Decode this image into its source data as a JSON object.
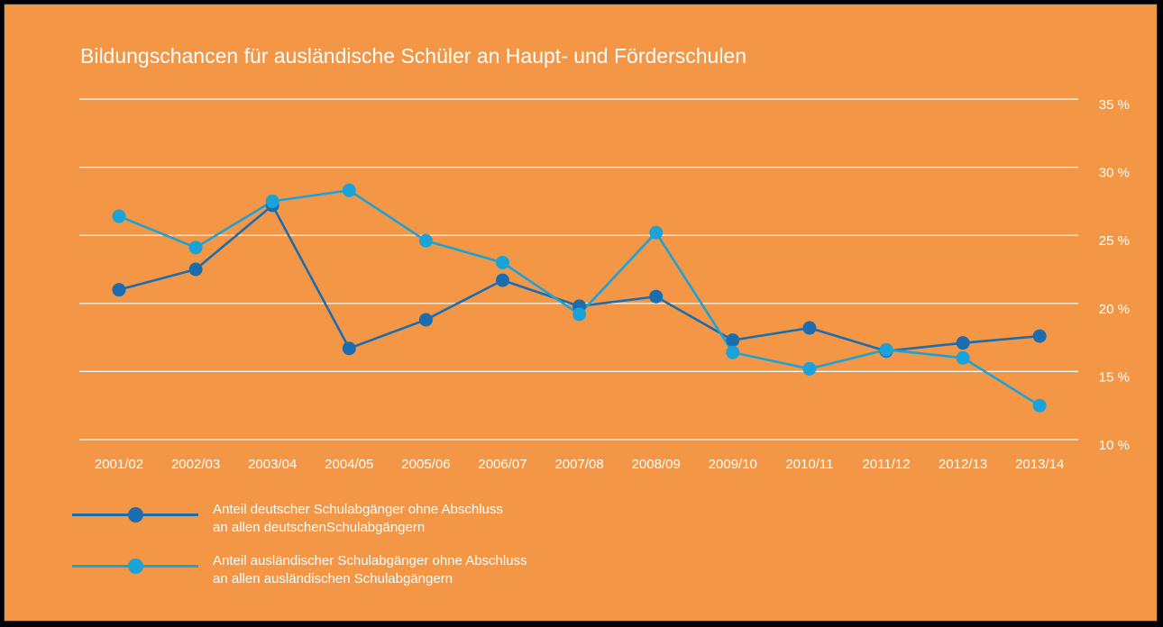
{
  "chart_data": {
    "type": "line",
    "title": "Bildungschancen für ausländische Schüler an Haupt- und Förderschulen",
    "categories": [
      "2001/02",
      "2002/03",
      "2003/04",
      "2004/05",
      "2005/06",
      "2006/07",
      "2007/08",
      "2008/09",
      "2009/10",
      "2010/11",
      "2011/12",
      "2012/13",
      "2013/14"
    ],
    "y_ticks": [
      "10 %",
      "15 %",
      "20 %",
      "25 %",
      "30 %",
      "35 %"
    ],
    "ylim": [
      10,
      35
    ],
    "y_axis_position": "right",
    "grid": true,
    "legend_position": "bottom-left",
    "series": [
      {
        "name_lines": [
          "Anteil deutscher Schulabgänger ohne Abschluss",
          "an allen deutschenSchulabgängern"
        ],
        "color": "#1B6DB0",
        "values": [
          21.0,
          22.5,
          27.2,
          16.7,
          18.8,
          21.7,
          19.8,
          20.5,
          17.3,
          18.2,
          16.5,
          17.1,
          17.6
        ]
      },
      {
        "name_lines": [
          "Anteil ausländischer Schulabgänger ohne Abschluss",
          "an allen ausländischen Schulabgängern"
        ],
        "color": "#1BA3D9",
        "values": [
          26.4,
          24.1,
          27.5,
          28.3,
          24.6,
          23.0,
          19.2,
          25.2,
          16.4,
          15.2,
          16.6,
          16.0,
          12.5
        ]
      }
    ]
  }
}
